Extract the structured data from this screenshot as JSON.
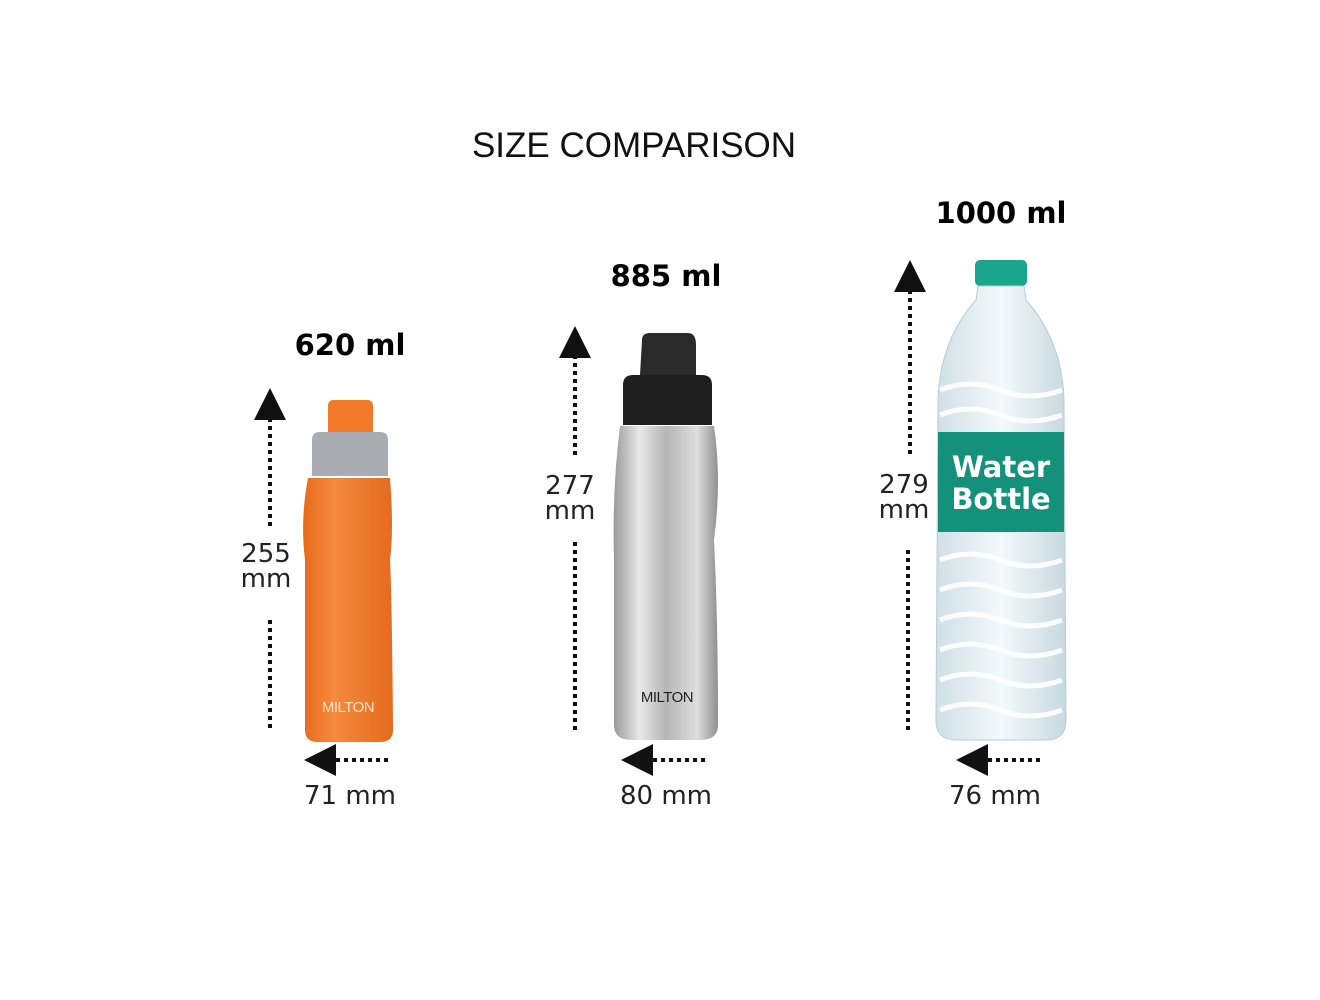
{
  "title": "SIZE COMPARISON",
  "products": [
    {
      "capacity": "620 ml",
      "height_value": "255",
      "height_unit": "mm",
      "width": "71 mm",
      "brand": "MILTON",
      "color": "#f07a2a"
    },
    {
      "capacity": "885 ml",
      "height_value": "277",
      "height_unit": "mm",
      "width": "80 mm",
      "brand": "MILTON",
      "color": "#c8c8c8"
    },
    {
      "capacity": "1000 ml",
      "height_value": "279",
      "height_unit": "mm",
      "width": "76 mm",
      "label_line1": "Water",
      "label_line2": "Bottle",
      "color": "#14917a"
    }
  ]
}
